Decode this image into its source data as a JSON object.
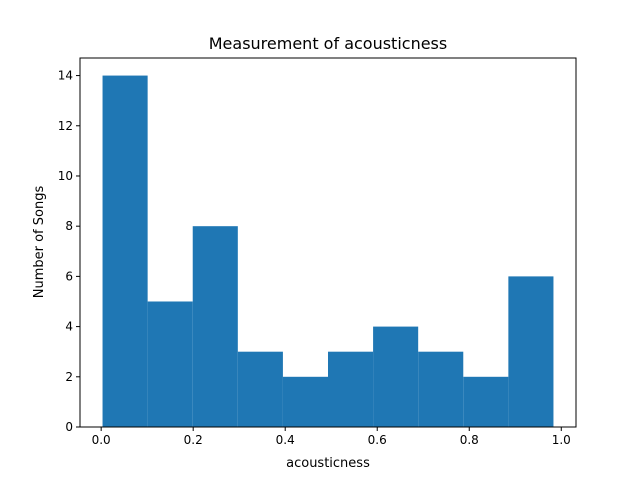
{
  "chart_data": {
    "type": "bar",
    "subtype": "histogram",
    "title": "Measurement of acousticness",
    "xlabel": "acousticness",
    "ylabel": "Number of Songs",
    "bins": [
      {
        "start": 0.003,
        "end": 0.101,
        "count": 14
      },
      {
        "start": 0.101,
        "end": 0.199,
        "count": 5
      },
      {
        "start": 0.199,
        "end": 0.297,
        "count": 8
      },
      {
        "start": 0.297,
        "end": 0.395,
        "count": 3
      },
      {
        "start": 0.395,
        "end": 0.493,
        "count": 2
      },
      {
        "start": 0.493,
        "end": 0.591,
        "count": 3
      },
      {
        "start": 0.591,
        "end": 0.689,
        "count": 4
      },
      {
        "start": 0.689,
        "end": 0.787,
        "count": 3
      },
      {
        "start": 0.787,
        "end": 0.885,
        "count": 2
      },
      {
        "start": 0.885,
        "end": 0.983,
        "count": 6
      }
    ],
    "xlim": [
      -0.046,
      1.032
    ],
    "ylim": [
      0,
      14.7
    ],
    "xticks": [
      "0.0",
      "0.2",
      "0.4",
      "0.6",
      "0.8",
      "1.0"
    ],
    "yticks": [
      "0",
      "2",
      "4",
      "6",
      "8",
      "10",
      "12",
      "14"
    ],
    "bar_color": "#1f77b4",
    "grid": false,
    "legend": "none"
  }
}
